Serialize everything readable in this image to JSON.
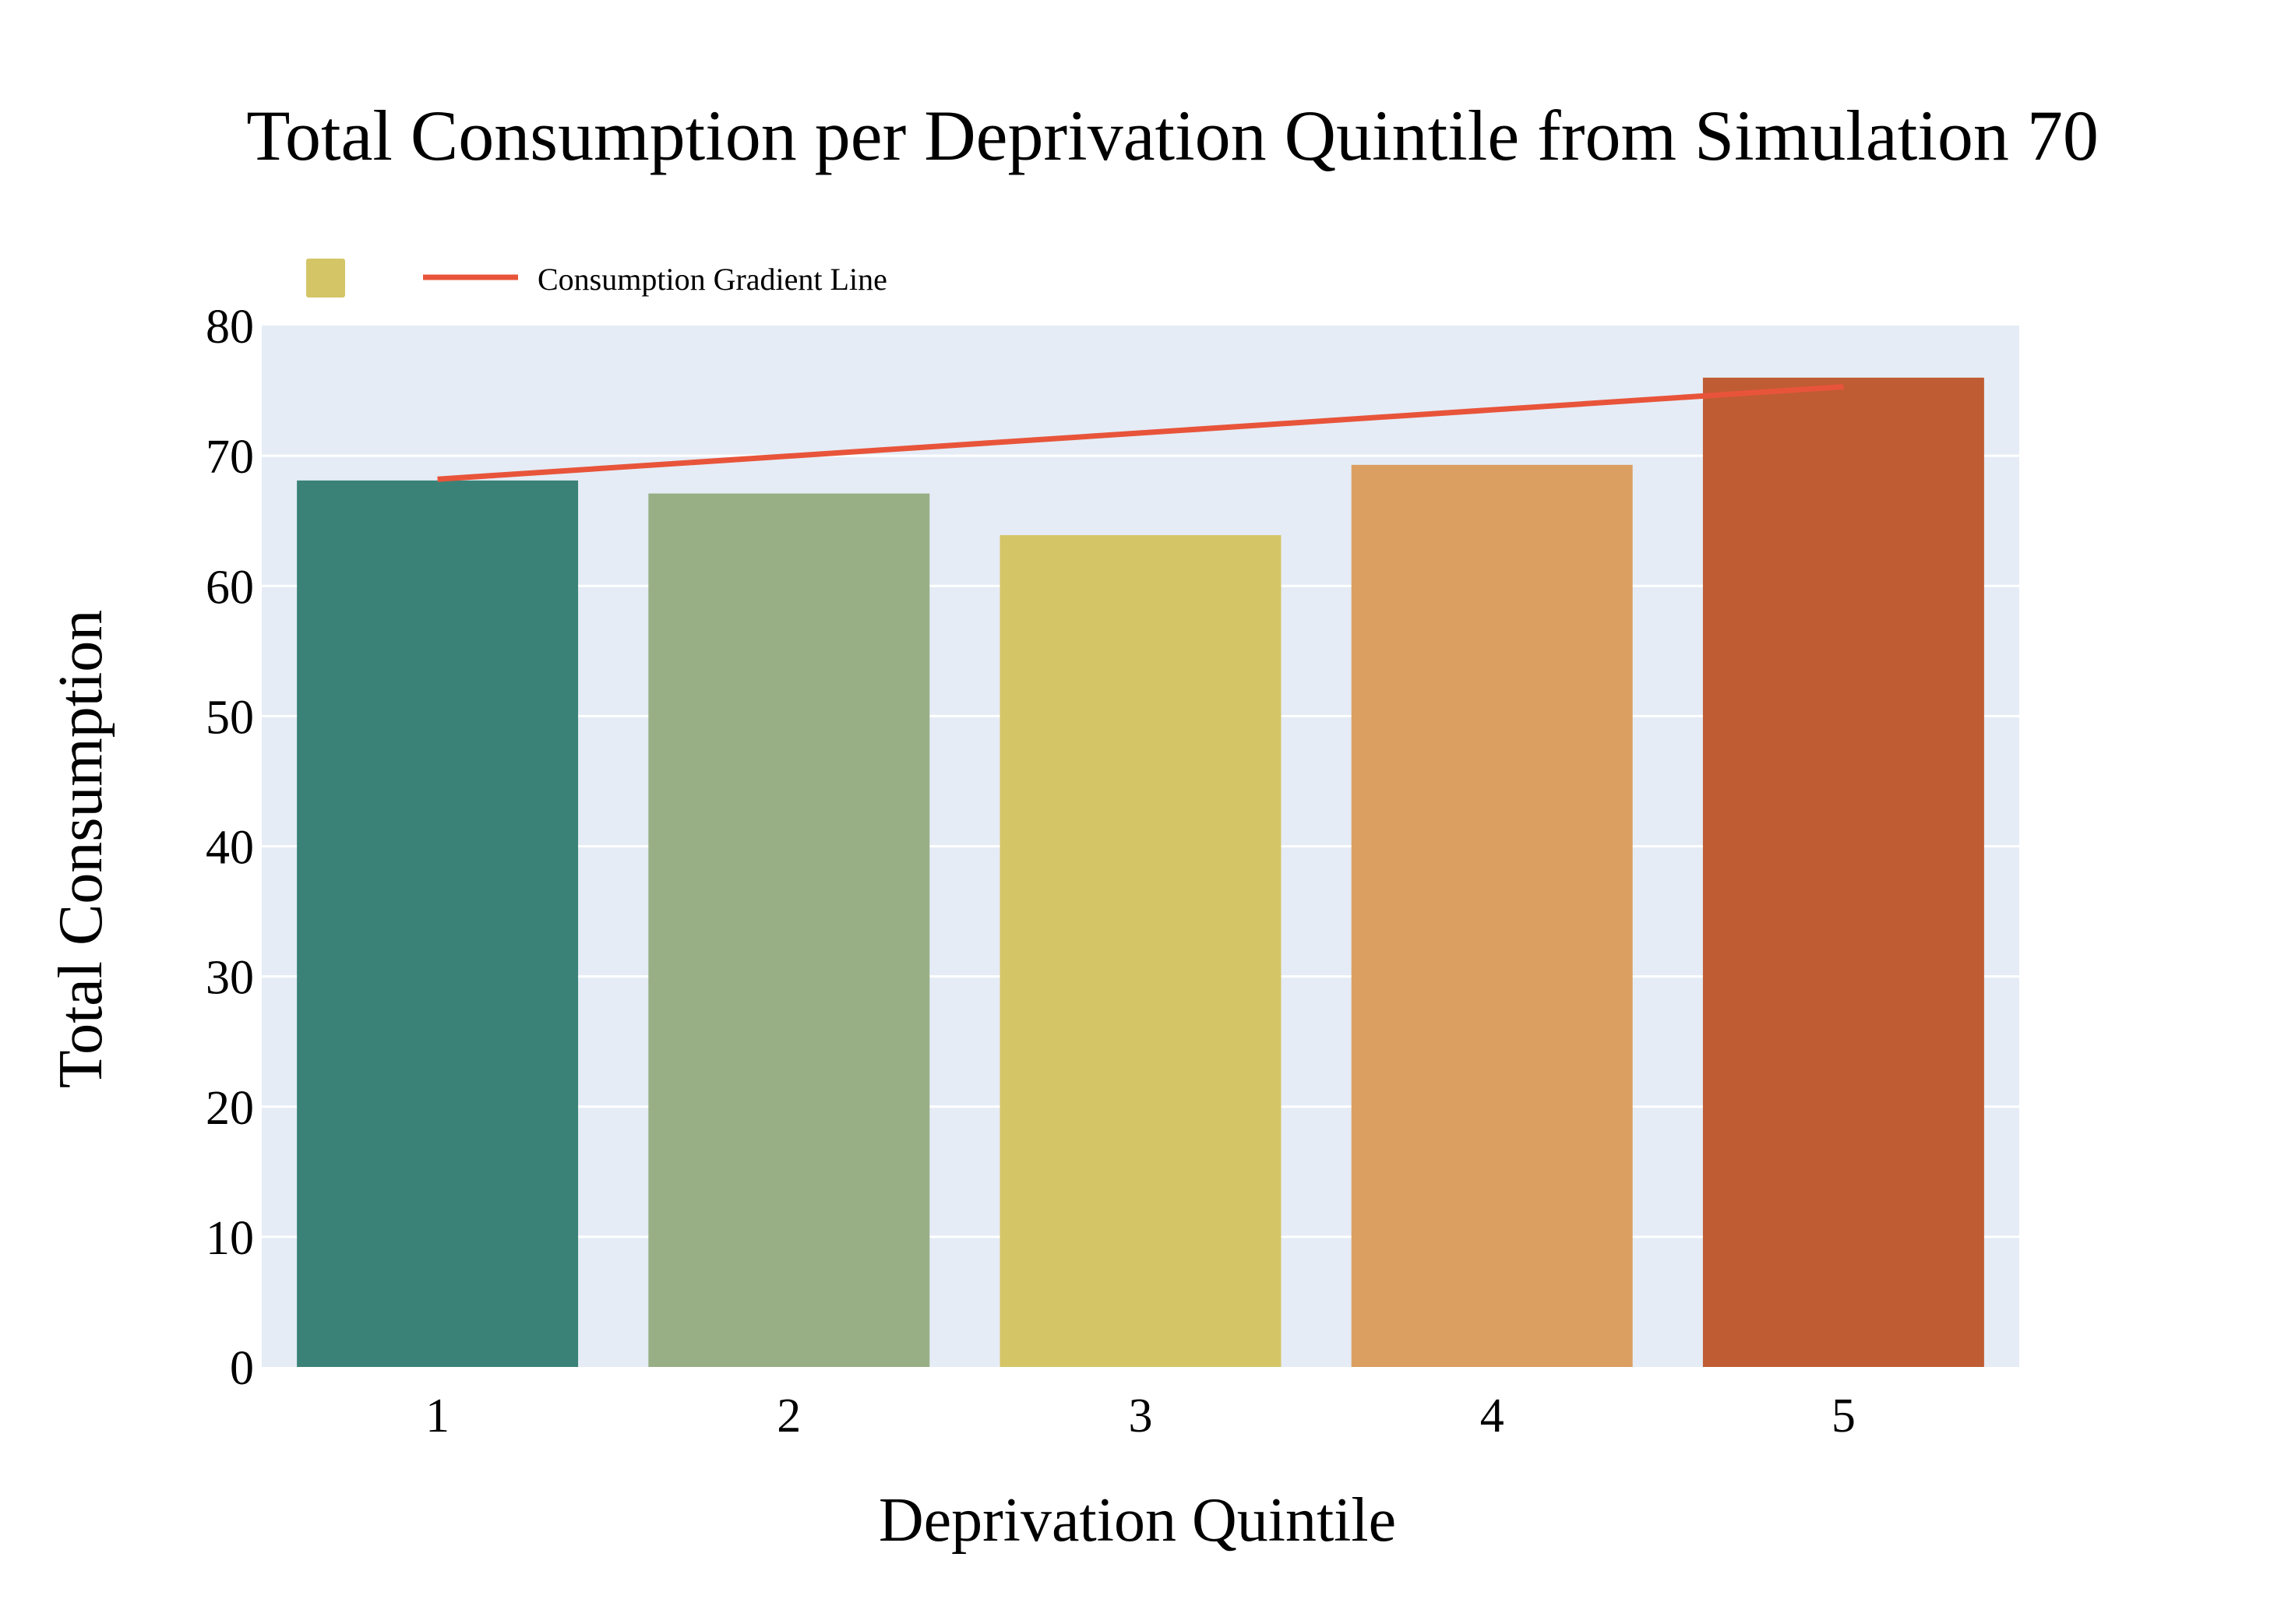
{
  "chart_data": {
    "type": "bar",
    "title": "Total Consumption per Deprivation Quintile from Simulation 70",
    "xlabel": "Deprivation Quintile",
    "ylabel": "Total Consumption",
    "categories": [
      "1",
      "2",
      "3",
      "4",
      "5"
    ],
    "series": [
      {
        "values": [
          68.1,
          67.1,
          63.9,
          69.3,
          76.0
        ],
        "colors": [
          "#3a8277",
          "#98af86",
          "#d4c567",
          "#db9f62",
          "#bf5c33"
        ]
      },
      {
        "name": "Consumption Gradient Line",
        "type": "line",
        "color": "#e8543a",
        "x": [
          1,
          5
        ],
        "values": [
          68.2,
          75.3
        ]
      }
    ],
    "ylim": [
      0,
      80
    ],
    "yticks": [
      0,
      10,
      20,
      30,
      40,
      50,
      60,
      70,
      80
    ],
    "grid": true,
    "legend_position": "top-left",
    "plot_background": "#e5ecf6"
  }
}
